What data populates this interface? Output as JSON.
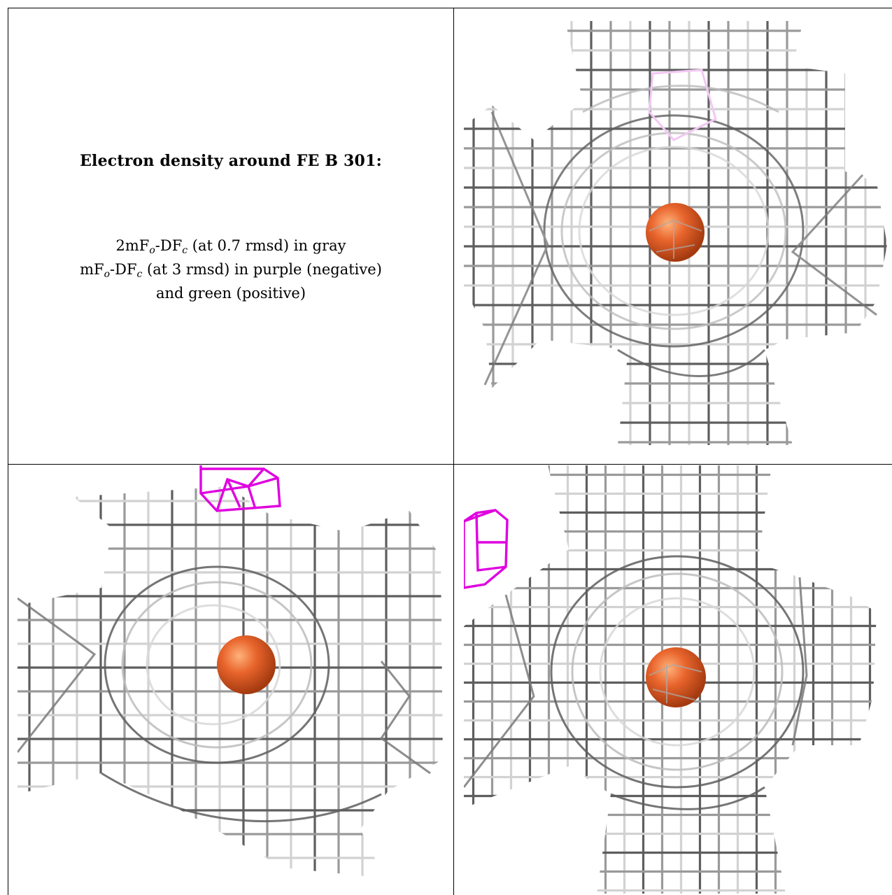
{
  "caption": {
    "title": "Electron density around FE B 301:",
    "line1": {
      "a": "2mF",
      "sub1": "o",
      "b": "-DF",
      "sub2": "c",
      "c": " (at 0.7 rmsd) in gray"
    },
    "line2": {
      "a": "mF",
      "sub1": "o",
      "b": "-DF",
      "sub2": "c",
      "c": " (at 3 rmsd) in purple (negative)"
    },
    "line3": "and green (positive)"
  },
  "colors": {
    "atom": "#e8642c",
    "negative_mesh": "#e000e0",
    "mesh_dark": "#5e5e5e",
    "mesh_mid": "#9a9a9a",
    "mesh_light": "#d2d2d2"
  }
}
